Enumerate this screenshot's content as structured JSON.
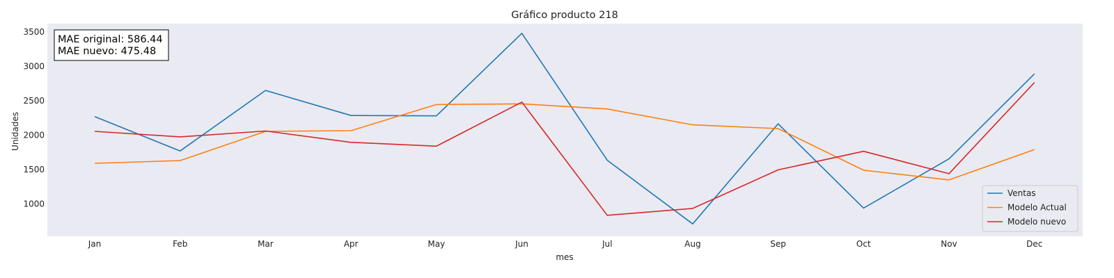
{
  "chart_data": {
    "type": "line",
    "title": "Gráfico producto 218",
    "xlabel": "mes",
    "ylabel": "Unidades",
    "categories": [
      "Jan",
      "Feb",
      "Mar",
      "Apr",
      "May",
      "Jun",
      "Jul",
      "Aug",
      "Sep",
      "Oct",
      "Nov",
      "Dec"
    ],
    "ylim": [
      530,
      3620
    ],
    "yticks": [
      1000,
      1500,
      2000,
      2500,
      3000,
      3500
    ],
    "grid": false,
    "legend_position": "lower-right",
    "background_color": "#eaeaf2",
    "series": [
      {
        "name": "Ventas",
        "color": "#1f77b4",
        "values": [
          2270,
          1770,
          2650,
          2285,
          2280,
          3480,
          1635,
          710,
          2165,
          940,
          1655,
          2890
        ]
      },
      {
        "name": "Modelo Actual",
        "color": "#ff7f0e",
        "values": [
          1590,
          1630,
          2055,
          2065,
          2445,
          2455,
          2380,
          2150,
          2095,
          1490,
          1350,
          1790
        ]
      },
      {
        "name": "Modelo nuevo",
        "color": "#d62728",
        "values": [
          2055,
          1975,
          2060,
          1895,
          1840,
          2480,
          835,
          935,
          1495,
          1765,
          1440,
          2765
        ]
      }
    ],
    "annotation": {
      "line1": "MAE original: 586.44",
      "line2": "MAE nuevo: 475.48"
    }
  }
}
